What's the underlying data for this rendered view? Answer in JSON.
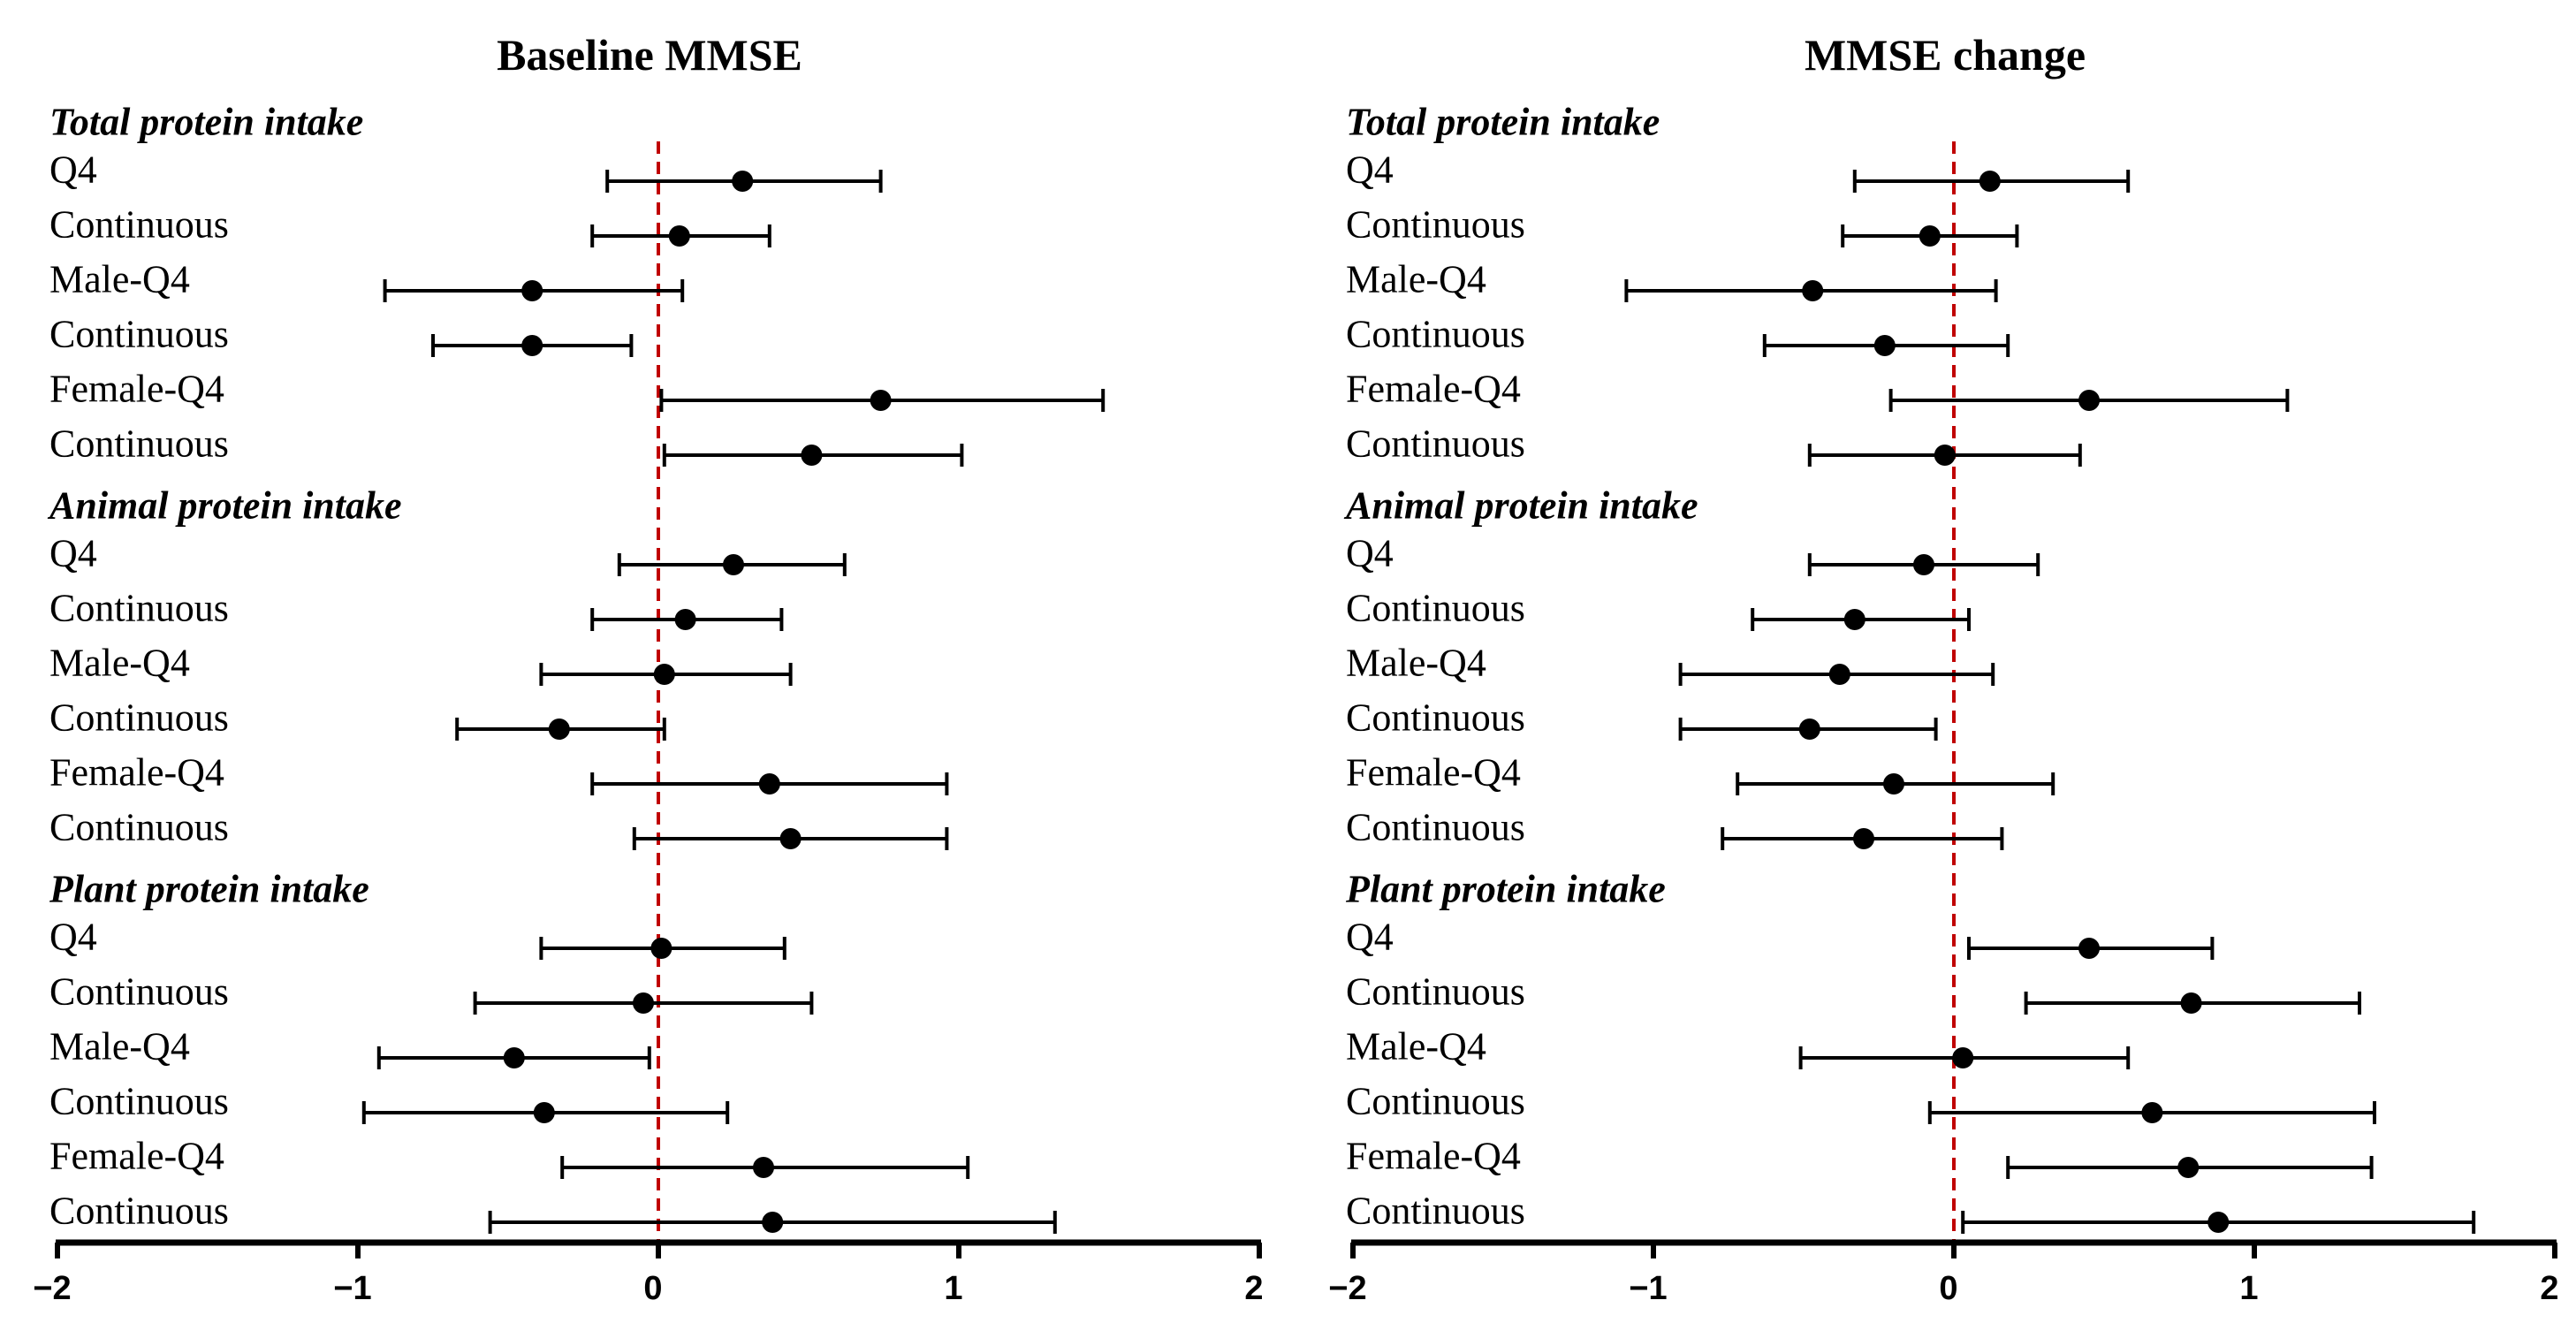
{
  "chart_data": [
    {
      "type": "forest",
      "title": "Baseline MMSE",
      "xlim": [
        -2,
        2
      ],
      "xticks": [
        "−2",
        "−1",
        "0",
        "1",
        "2"
      ],
      "reference_line": 0,
      "groups": [
        {
          "name": "Total protein intake",
          "rows": [
            {
              "label": "Q4",
              "est": 0.28,
              "lo": -0.17,
              "hi": 0.74
            },
            {
              "label": "Continuous",
              "est": 0.07,
              "lo": -0.22,
              "hi": 0.37
            },
            {
              "label": "Male-Q4",
              "est": -0.42,
              "lo": -0.91,
              "hi": 0.08
            },
            {
              "label": "Continuous",
              "est": -0.42,
              "lo": -0.75,
              "hi": -0.09
            },
            {
              "label": "Female-Q4",
              "est": 0.74,
              "lo": 0.01,
              "hi": 1.48
            },
            {
              "label": "Continuous",
              "est": 0.51,
              "lo": 0.02,
              "hi": 1.01
            }
          ]
        },
        {
          "name": "Animal protein intake",
          "rows": [
            {
              "label": "Q4",
              "est": 0.25,
              "lo": -0.13,
              "hi": 0.62
            },
            {
              "label": "Continuous",
              "est": 0.09,
              "lo": -0.22,
              "hi": 0.41
            },
            {
              "label": "Male-Q4",
              "est": 0.02,
              "lo": -0.39,
              "hi": 0.44
            },
            {
              "label": "Continuous",
              "est": -0.33,
              "lo": -0.67,
              "hi": 0.02
            },
            {
              "label": "Female-Q4",
              "est": 0.37,
              "lo": -0.22,
              "hi": 0.96
            },
            {
              "label": "Continuous",
              "est": 0.44,
              "lo": -0.08,
              "hi": 0.96
            }
          ]
        },
        {
          "name": "Plant protein intake",
          "rows": [
            {
              "label": "Q4",
              "est": 0.01,
              "lo": -0.39,
              "hi": 0.42
            },
            {
              "label": "Continuous",
              "est": -0.05,
              "lo": -0.61,
              "hi": 0.51
            },
            {
              "label": "Male-Q4",
              "est": -0.48,
              "lo": -0.93,
              "hi": -0.03
            },
            {
              "label": "Continuous",
              "est": -0.38,
              "lo": -0.98,
              "hi": 0.23
            },
            {
              "label": "Female-Q4",
              "est": 0.35,
              "lo": -0.32,
              "hi": 1.03
            },
            {
              "label": "Continuous",
              "est": 0.38,
              "lo": -0.56,
              "hi": 1.32
            }
          ]
        }
      ]
    },
    {
      "type": "forest",
      "title": "MMSE change",
      "xlim": [
        -2,
        2
      ],
      "xticks": [
        "−2",
        "−1",
        "0",
        "1",
        "2"
      ],
      "reference_line": 0,
      "groups": [
        {
          "name": "Total protein intake",
          "rows": [
            {
              "label": "Q4",
              "est": 0.12,
              "lo": -0.33,
              "hi": 0.58
            },
            {
              "label": "Continuous",
              "est": -0.08,
              "lo": -0.37,
              "hi": 0.21
            },
            {
              "label": "Male-Q4",
              "est": -0.47,
              "lo": -1.09,
              "hi": 0.14
            },
            {
              "label": "Continuous",
              "est": -0.23,
              "lo": -0.63,
              "hi": 0.18
            },
            {
              "label": "Female-Q4",
              "est": 0.45,
              "lo": -0.21,
              "hi": 1.11
            },
            {
              "label": "Continuous",
              "est": -0.03,
              "lo": -0.48,
              "hi": 0.42
            }
          ]
        },
        {
          "name": "Animal protein intake",
          "rows": [
            {
              "label": "Q4",
              "est": -0.1,
              "lo": -0.48,
              "hi": 0.28
            },
            {
              "label": "Continuous",
              "est": -0.33,
              "lo": -0.67,
              "hi": 0.05
            },
            {
              "label": "Male-Q4",
              "est": -0.38,
              "lo": -0.91,
              "hi": 0.13
            },
            {
              "label": "Continuous",
              "est": -0.48,
              "lo": -0.91,
              "hi": -0.06
            },
            {
              "label": "Female-Q4",
              "est": -0.2,
              "lo": -0.72,
              "hi": 0.33
            },
            {
              "label": "Continuous",
              "est": -0.3,
              "lo": -0.77,
              "hi": 0.16
            }
          ]
        },
        {
          "name": "Plant protein intake",
          "rows": [
            {
              "label": "Q4",
              "est": 0.45,
              "lo": 0.05,
              "hi": 0.86
            },
            {
              "label": "Continuous",
              "est": 0.79,
              "lo": 0.24,
              "hi": 1.35
            },
            {
              "label": "Male-Q4",
              "est": 0.03,
              "lo": -0.51,
              "hi": 0.58
            },
            {
              "label": "Continuous",
              "est": 0.66,
              "lo": -0.08,
              "hi": 1.4
            },
            {
              "label": "Female-Q4",
              "est": 0.78,
              "lo": 0.18,
              "hi": 1.39
            },
            {
              "label": "Continuous",
              "est": 0.88,
              "lo": 0.03,
              "hi": 1.73
            }
          ]
        }
      ]
    }
  ],
  "colors": {
    "marker": "#000000",
    "error_bar": "#000000",
    "axis": "#000000",
    "reference_line": "#c00000"
  }
}
